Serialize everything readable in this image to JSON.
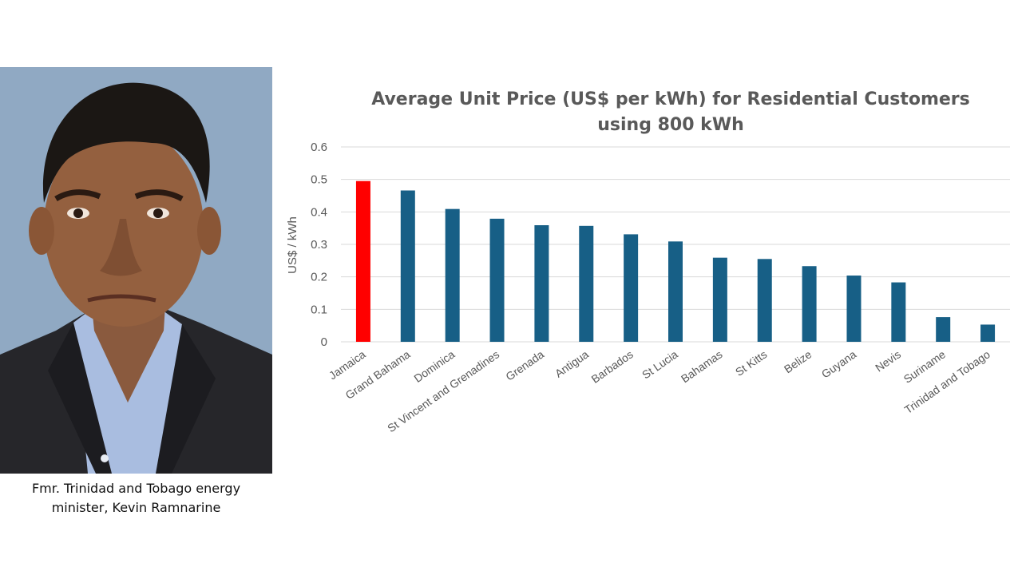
{
  "caption": {
    "line1": "Fmr. Trinidad and Tobago energy",
    "line2": "minister, Kevin Ramnarine"
  },
  "colors": {
    "highlight": "#ff0000",
    "bar": "#175f86",
    "grid": "#d9d9d9"
  },
  "chart_data": {
    "type": "bar",
    "title_line1": "Average Unit Price (US$ per kWh) for Residential Customers",
    "title_line2": "using 800 kWh",
    "ylabel": "US$ / kWh",
    "xlabel": "",
    "ylim": [
      0,
      0.6
    ],
    "yticks": [
      "0",
      "0.1",
      "0.2",
      "0.3",
      "0.4",
      "0.5",
      "0.6"
    ],
    "grid": true,
    "categories": [
      "Jamaica",
      "Grand Bahama",
      "Dominica",
      "St Vincent and Grenadines",
      "Grenada",
      "Antigua",
      "Barbados",
      "St Lucia",
      "Bahamas",
      "St Kitts",
      "Belize",
      "Guyana",
      "Nevis",
      "Suriname",
      "Trinidad and Tobago"
    ],
    "values": [
      0.495,
      0.466,
      0.409,
      0.379,
      0.359,
      0.357,
      0.331,
      0.309,
      0.259,
      0.255,
      0.233,
      0.204,
      0.183,
      0.076,
      0.053
    ],
    "highlight_index": 0
  }
}
